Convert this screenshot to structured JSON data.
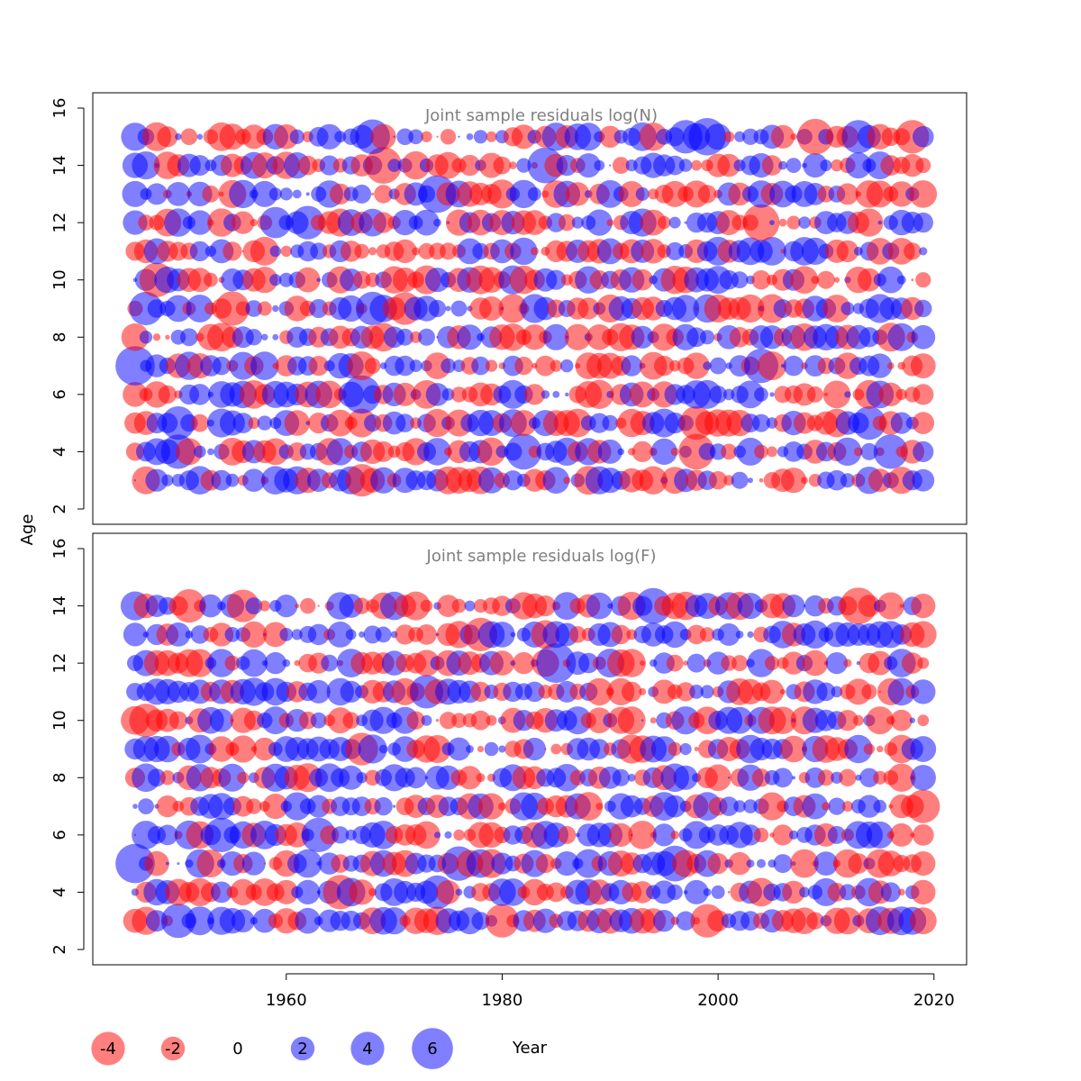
{
  "ylabel": "Age",
  "xlabel": "Year",
  "chart_data": [
    {
      "type": "scatter",
      "title": "Joint sample residuals log(N)",
      "ylabel": "Age",
      "xlim": [
        1942,
        2023
      ],
      "ylim": [
        1.5,
        16.5
      ],
      "xticks": [],
      "yticks": [
        2,
        4,
        6,
        8,
        10,
        12,
        14,
        16
      ],
      "encoding": "bubble: x = Year, y = Age, area proportional to |residual|, red = negative, blue = positive",
      "years": [
        1946,
        2019
      ],
      "ages": [
        3,
        15
      ],
      "highlighted_residuals": [
        {
          "year": 1946,
          "age": 7,
          "value": 5.5
        },
        {
          "year": 1948,
          "age": 10,
          "value": -4.2
        },
        {
          "year": 1947,
          "age": 9,
          "value": 4.0
        },
        {
          "year": 1955,
          "age": 9,
          "value": -4.2
        },
        {
          "year": 1968,
          "age": 15,
          "value": 4.3
        },
        {
          "year": 1969,
          "age": 14,
          "value": -4.8
        },
        {
          "year": 1967,
          "age": 6,
          "value": 5.2
        },
        {
          "year": 1968,
          "age": 9,
          "value": 4.0
        },
        {
          "year": 1971,
          "age": 9,
          "value": -3.8
        },
        {
          "year": 1974,
          "age": 13,
          "value": 5.0
        },
        {
          "year": 1962,
          "age": 12,
          "value": 4.0
        },
        {
          "year": 1959,
          "age": 12,
          "value": 3.5
        },
        {
          "year": 1984,
          "age": 14,
          "value": 4.6
        },
        {
          "year": 1982,
          "age": 4,
          "value": 4.6
        },
        {
          "year": 1999,
          "age": 15,
          "value": 5.0
        },
        {
          "year": 1997,
          "age": 15,
          "value": 4.0
        },
        {
          "year": 2004,
          "age": 12,
          "value": -4.8
        },
        {
          "year": 2009,
          "age": 15,
          "value": -4.6
        },
        {
          "year": 2013,
          "age": 15,
          "value": 4.0
        },
        {
          "year": 2018,
          "age": 15,
          "value": -4.0
        },
        {
          "year": 2004,
          "age": 7,
          "value": 4.2
        },
        {
          "year": 1998,
          "age": 4,
          "value": -4.6
        },
        {
          "year": 1998,
          "age": 5,
          "value": -4.0
        },
        {
          "year": 2014,
          "age": 5,
          "value": 4.0
        },
        {
          "year": 2016,
          "age": 4,
          "value": 4.2
        },
        {
          "year": 1967,
          "age": 3,
          "value": -3.8
        },
        {
          "year": 1950,
          "age": 4,
          "value": 4.2
        },
        {
          "year": 1950,
          "age": 5,
          "value": 4.0
        }
      ]
    },
    {
      "type": "scatter",
      "title": "Joint sample residuals log(F)",
      "ylabel": "Age",
      "xlim": [
        1942,
        2023
      ],
      "ylim": [
        1.5,
        16.5
      ],
      "xticks": [
        1960,
        1980,
        2000,
        2020
      ],
      "yticks": [
        2,
        4,
        6,
        8,
        10,
        12,
        14,
        16
      ],
      "encoding": "bubble: x = Year, y = Age, area proportional to |residual|, red = negative, blue = positive",
      "years": [
        1946,
        2019
      ],
      "ages": [
        3,
        14
      ],
      "highlighted_residuals": [
        {
          "year": 1946,
          "age": 5,
          "value": 5.5
        },
        {
          "year": 1985,
          "age": 12,
          "value": 5.6
        },
        {
          "year": 1996,
          "age": 5,
          "value": 4.6
        },
        {
          "year": 2013,
          "age": 14,
          "value": -4.8
        },
        {
          "year": 1994,
          "age": 14,
          "value": 4.6
        },
        {
          "year": 1973,
          "age": 11,
          "value": 4.0
        },
        {
          "year": 1967,
          "age": 9,
          "value": -3.8
        },
        {
          "year": 1999,
          "age": 3,
          "value": -4.0
        },
        {
          "year": 1980,
          "age": 3,
          "value": -4.0
        },
        {
          "year": 1963,
          "age": 6,
          "value": 4.2
        },
        {
          "year": 1954,
          "age": 6,
          "value": 4.2
        },
        {
          "year": 1950,
          "age": 3,
          "value": 4.2
        },
        {
          "year": 1965,
          "age": 4,
          "value": -4.2
        },
        {
          "year": 1974,
          "age": 4,
          "value": 4.0
        },
        {
          "year": 1978,
          "age": 13,
          "value": -4.0
        },
        {
          "year": 1976,
          "age": 5,
          "value": 4.2
        },
        {
          "year": 1947,
          "age": 10,
          "value": -4.0
        },
        {
          "year": 1951,
          "age": 14,
          "value": -4.0
        },
        {
          "year": 1956,
          "age": 14,
          "value": -3.8
        },
        {
          "year": 2019,
          "age": 7,
          "value": -4.0
        }
      ]
    }
  ],
  "legend": {
    "entries": [
      {
        "label": "-4",
        "value": -4
      },
      {
        "label": "-2",
        "value": -2
      },
      {
        "label": "0",
        "value": 0
      },
      {
        "label": "2",
        "value": 2
      },
      {
        "label": "4",
        "value": 4
      },
      {
        "label": "6",
        "value": 6
      }
    ],
    "label": "Year"
  },
  "colors": {
    "negative": "#ff0000",
    "positive": "#0000ff",
    "title": "#7f7f7f"
  }
}
